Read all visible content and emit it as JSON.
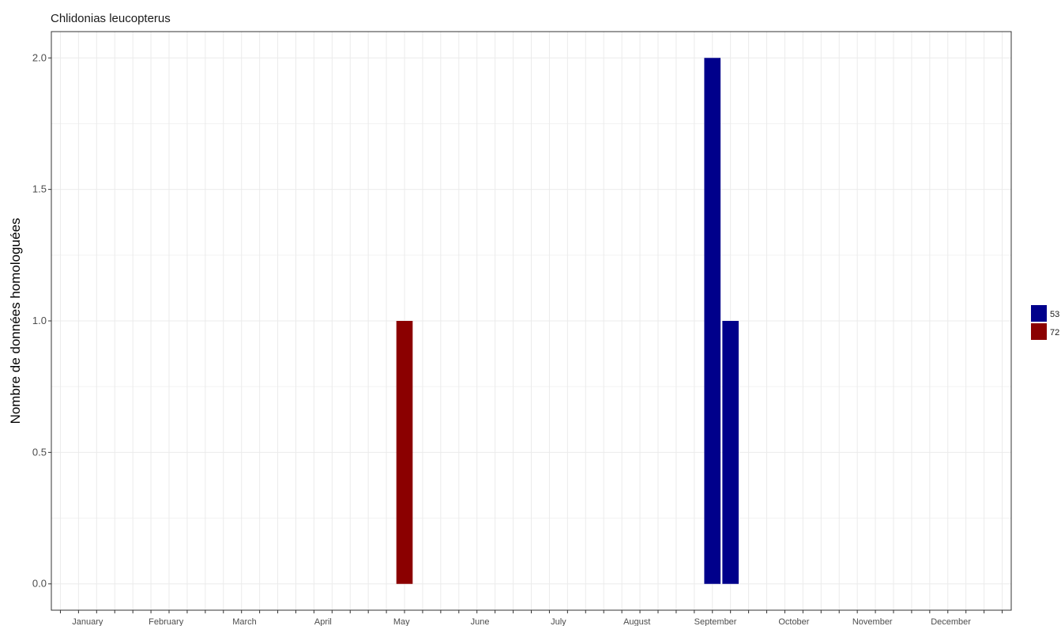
{
  "chart_data": {
    "type": "bar",
    "title": "Chlidonias leucopterus",
    "xlabel": "",
    "ylabel": "Nombre de données homologuées",
    "ylim": [
      -0.1,
      2.1
    ],
    "yticks": [
      "0.0",
      "0.5",
      "1.0",
      "1.5",
      "2.0"
    ],
    "ytick_values": [
      0,
      0.5,
      1.0,
      1.5,
      2.0
    ],
    "months": [
      "January",
      "February",
      "March",
      "April",
      "May",
      "June",
      "July",
      "August",
      "September",
      "October",
      "November",
      "December"
    ],
    "x_unit": "week of year",
    "xlim": [
      0.5,
      53.5
    ],
    "grid": true,
    "legend_position": "right",
    "series": [
      {
        "name": "53",
        "color": "#00008B",
        "bars": [
          {
            "week": 37,
            "value": 2
          },
          {
            "week": 38,
            "value": 1
          }
        ]
      },
      {
        "name": "72",
        "color": "#8B0000",
        "bars": [
          {
            "week": 20,
            "value": 1
          }
        ]
      }
    ]
  }
}
